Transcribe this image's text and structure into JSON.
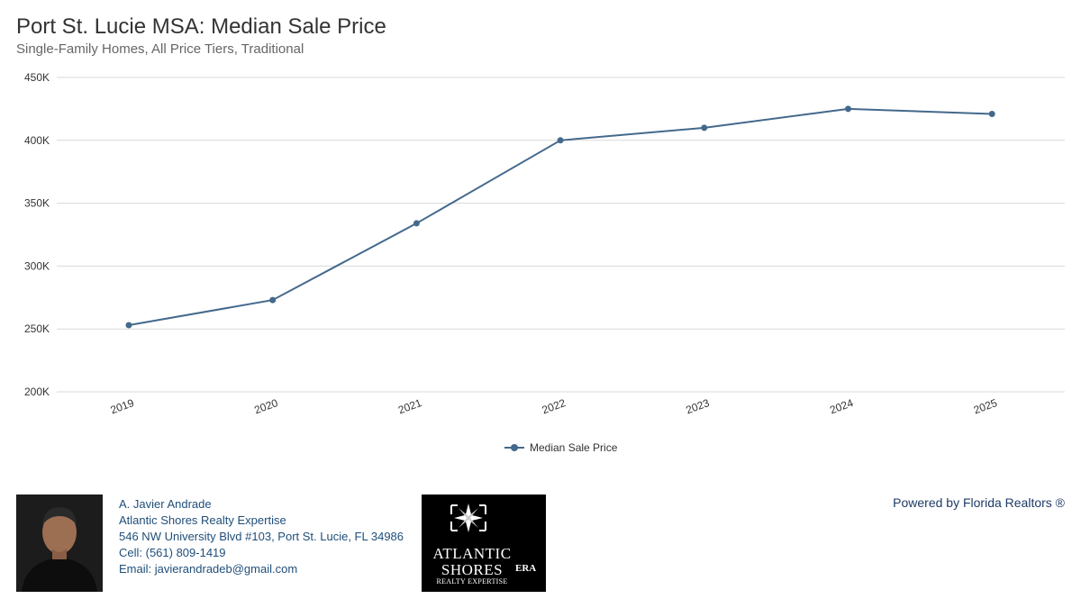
{
  "header": {
    "title": "Port St. Lucie MSA: Median Sale Price",
    "subtitle": "Single-Family Homes, All Price Tiers, Traditional"
  },
  "chart_data": {
    "type": "line",
    "title": "Port St. Lucie MSA: Median Sale Price",
    "subtitle": "Single-Family Homes, All Price Tiers, Traditional",
    "categories": [
      "2019",
      "2020",
      "2021",
      "2022",
      "2023",
      "2024",
      "2025"
    ],
    "series": [
      {
        "name": "Median Sale Price",
        "values": [
          253000,
          273000,
          334000,
          400000,
          410000,
          425000,
          421000
        ],
        "color": "#44698c"
      }
    ],
    "ylim": [
      200000,
      450000
    ],
    "yticks": [
      200000,
      250000,
      300000,
      350000,
      400000,
      450000
    ],
    "ytick_labels": [
      "200K",
      "250K",
      "300K",
      "350K",
      "400K",
      "450K"
    ],
    "xlabel": "",
    "ylabel": "",
    "grid": true,
    "legend_position": "bottom-center"
  },
  "footer": {
    "agent_name": "A. Javier Andrade",
    "company": "Atlantic Shores Realty Expertise",
    "address": "546 NW University Blvd #103, Port St. Lucie, FL 34986",
    "cell": "Cell: (561) 809-1419",
    "email": "Email: javierandradeb@gmail.com",
    "logo_line1": "ATLANTIC",
    "logo_line2": "SHORES",
    "logo_line3": "REALTY EXPERTISE",
    "logo_badge": "ERA",
    "powered_by": "Powered by Florida Realtors ®"
  },
  "colors": {
    "series": "#44698c",
    "grid": "#d9d9d9",
    "text_link": "#1f4e79"
  }
}
